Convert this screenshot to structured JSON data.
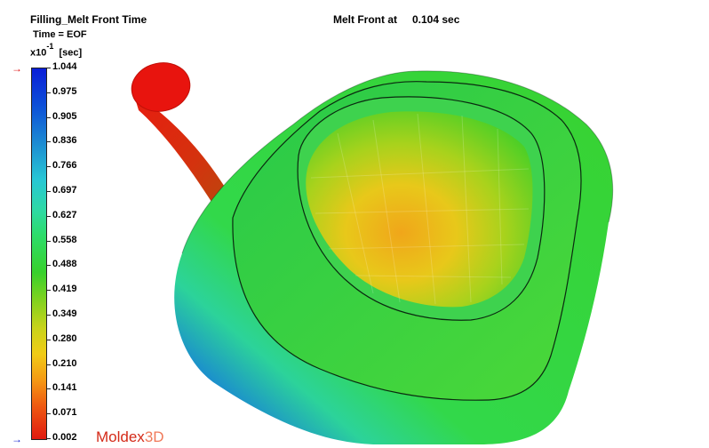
{
  "header": {
    "title": "Filling_Melt Front Time",
    "time": "Time = EOF",
    "scale_prefix": "x10",
    "scale_exponent": "-1",
    "scale_unit": "[sec]",
    "melt_front_label": "Melt Front at",
    "melt_front_value": "0.104 sec"
  },
  "legend": {
    "ticks": [
      "1.044",
      "0.975",
      "0.905",
      "0.836",
      "0.766",
      "0.697",
      "0.627",
      "0.558",
      "0.488",
      "0.419",
      "0.349",
      "0.280",
      "0.210",
      "0.141",
      "0.071",
      "0.002"
    ],
    "top_color": "#0a1ed8",
    "bottom_color": "#e01a10"
  },
  "logo": {
    "main": "Moldex",
    "suffix": "3D"
  }
}
